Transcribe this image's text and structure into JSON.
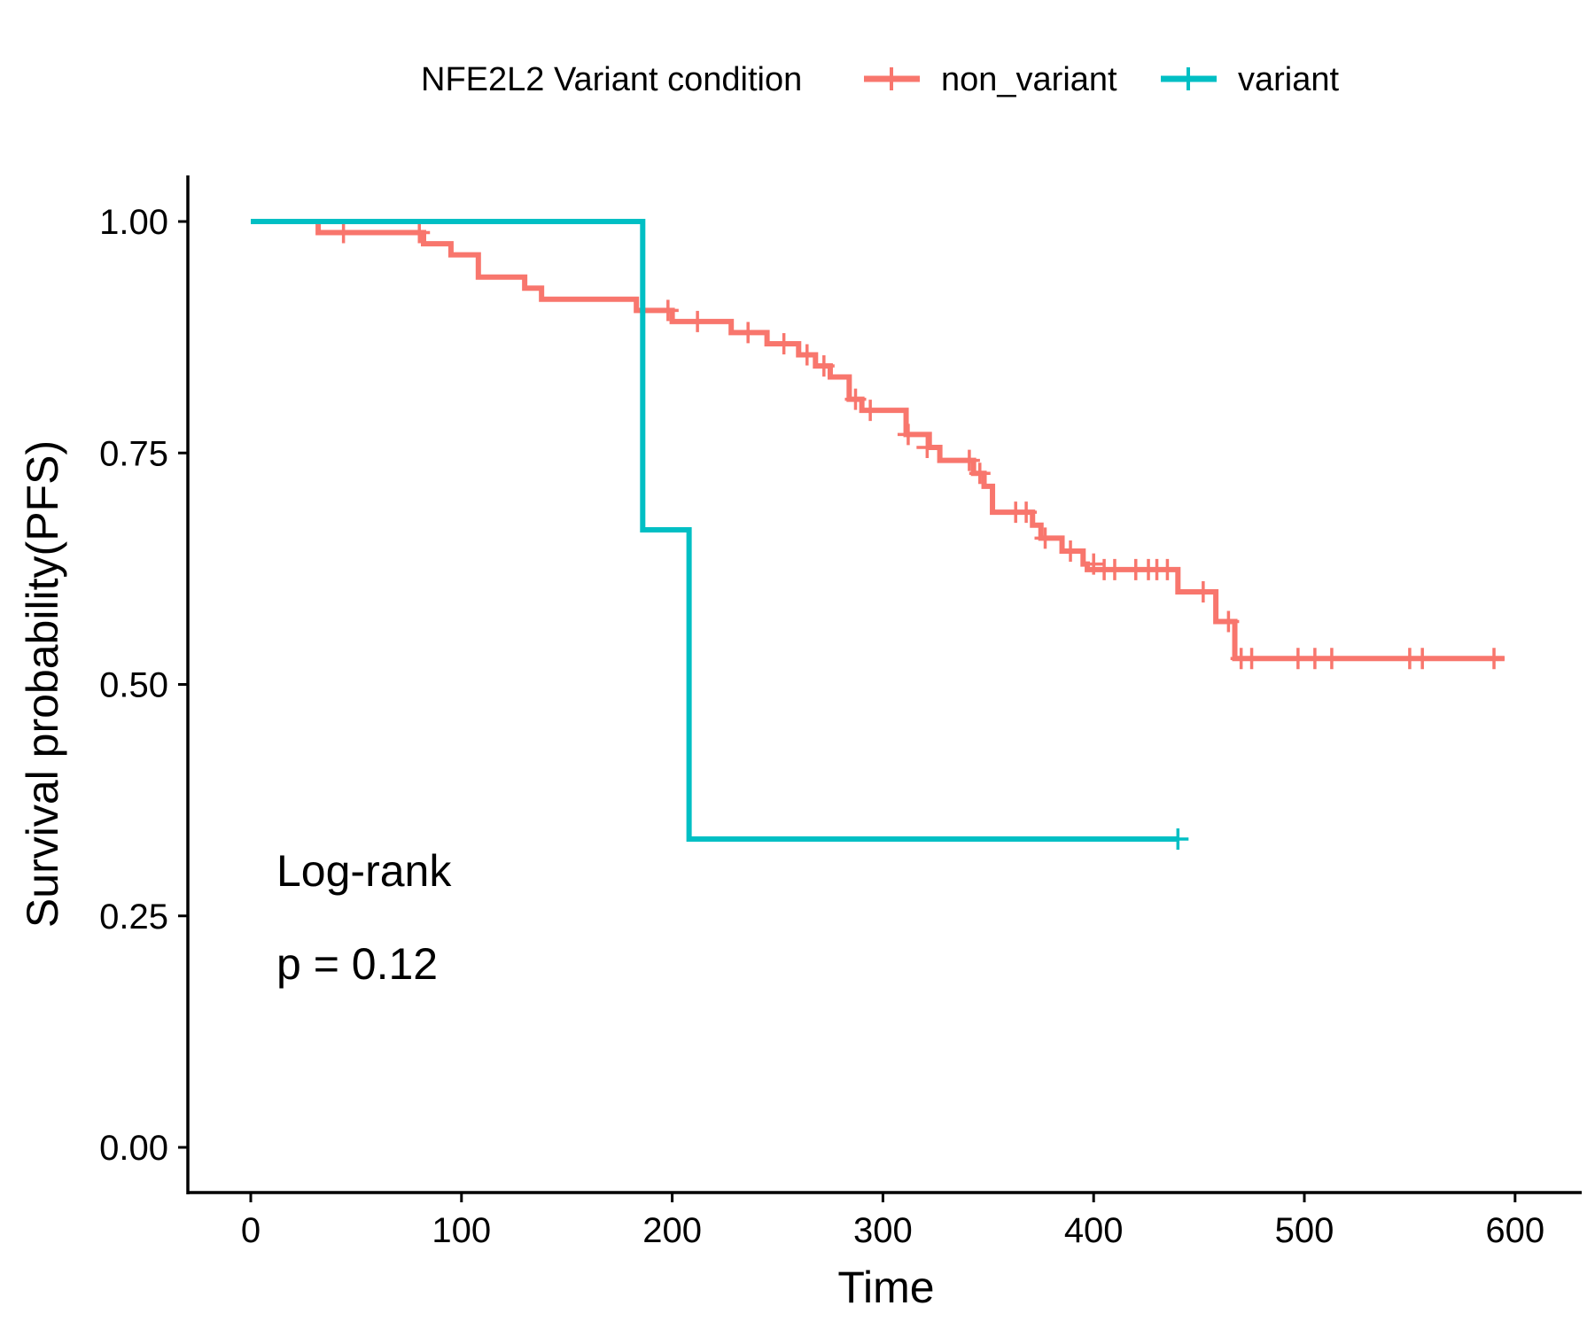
{
  "chart_data": {
    "type": "line",
    "subtype": "kaplan-meier-step",
    "title": "",
    "xlabel": "Time",
    "ylabel": "Survival probability(PFS)",
    "xlim": [
      -30,
      630
    ],
    "ylim": [
      -0.05,
      1.05
    ],
    "x_ticks": [
      "0",
      "100",
      "200",
      "300",
      "400",
      "500",
      "600"
    ],
    "x_tick_values": [
      0,
      100,
      200,
      300,
      400,
      500,
      600
    ],
    "y_ticks": [
      "0.00",
      "0.25",
      "0.50",
      "0.75",
      "1.00"
    ],
    "y_tick_values": [
      0,
      0.25,
      0.5,
      0.75,
      1.0
    ],
    "grid": false,
    "legend": {
      "title": "NFE2L2 Variant condition",
      "placement": "top",
      "entries": [
        "non_variant",
        "variant"
      ]
    },
    "annotations": [
      "Log-rank",
      "p = 0.12"
    ],
    "series": [
      {
        "name": "non_variant",
        "color": "#F8766D",
        "steps": [
          [
            0,
            1.0
          ],
          [
            32,
            0.988
          ],
          [
            82,
            0.976
          ],
          [
            95,
            0.964
          ],
          [
            108,
            0.94
          ],
          [
            130,
            0.928
          ],
          [
            138,
            0.916
          ],
          [
            183,
            0.904
          ],
          [
            200,
            0.892
          ],
          [
            228,
            0.88
          ],
          [
            245,
            0.868
          ],
          [
            260,
            0.856
          ],
          [
            268,
            0.844
          ],
          [
            275,
            0.832
          ],
          [
            284,
            0.808
          ],
          [
            290,
            0.796
          ],
          [
            311,
            0.77
          ],
          [
            322,
            0.756
          ],
          [
            327,
            0.742
          ],
          [
            343,
            0.728
          ],
          [
            348,
            0.714
          ],
          [
            352,
            0.686
          ],
          [
            371,
            0.672
          ],
          [
            375,
            0.658
          ],
          [
            385,
            0.644
          ],
          [
            395,
            0.63
          ],
          [
            397,
            0.624
          ],
          [
            440,
            0.6
          ],
          [
            458,
            0.568
          ],
          [
            467,
            0.528
          ],
          [
            595,
            0.528
          ]
        ],
        "censors": [
          [
            44,
            0.988
          ],
          [
            80,
            0.988
          ],
          [
            198,
            0.904
          ],
          [
            212,
            0.892
          ],
          [
            236,
            0.88
          ],
          [
            253,
            0.868
          ],
          [
            264,
            0.856
          ],
          [
            272,
            0.844
          ],
          [
            287,
            0.808
          ],
          [
            294,
            0.796
          ],
          [
            312,
            0.77
          ],
          [
            321,
            0.756
          ],
          [
            341,
            0.742
          ],
          [
            346,
            0.728
          ],
          [
            363,
            0.686
          ],
          [
            368,
            0.686
          ],
          [
            377,
            0.658
          ],
          [
            389,
            0.644
          ],
          [
            400,
            0.63
          ],
          [
            405,
            0.624
          ],
          [
            410,
            0.624
          ],
          [
            420,
            0.624
          ],
          [
            426,
            0.624
          ],
          [
            430,
            0.624
          ],
          [
            435,
            0.624
          ],
          [
            452,
            0.6
          ],
          [
            464,
            0.568
          ],
          [
            470,
            0.528
          ],
          [
            475,
            0.528
          ],
          [
            497,
            0.528
          ],
          [
            505,
            0.528
          ],
          [
            513,
            0.528
          ],
          [
            550,
            0.528
          ],
          [
            556,
            0.528
          ],
          [
            590,
            0.528
          ]
        ]
      },
      {
        "name": "variant",
        "color": "#00BFC4",
        "steps": [
          [
            0,
            1.0
          ],
          [
            186,
            0.667
          ],
          [
            208,
            0.333
          ],
          [
            440,
            0.333
          ]
        ],
        "censors": [
          [
            440,
            0.333
          ]
        ]
      }
    ]
  }
}
